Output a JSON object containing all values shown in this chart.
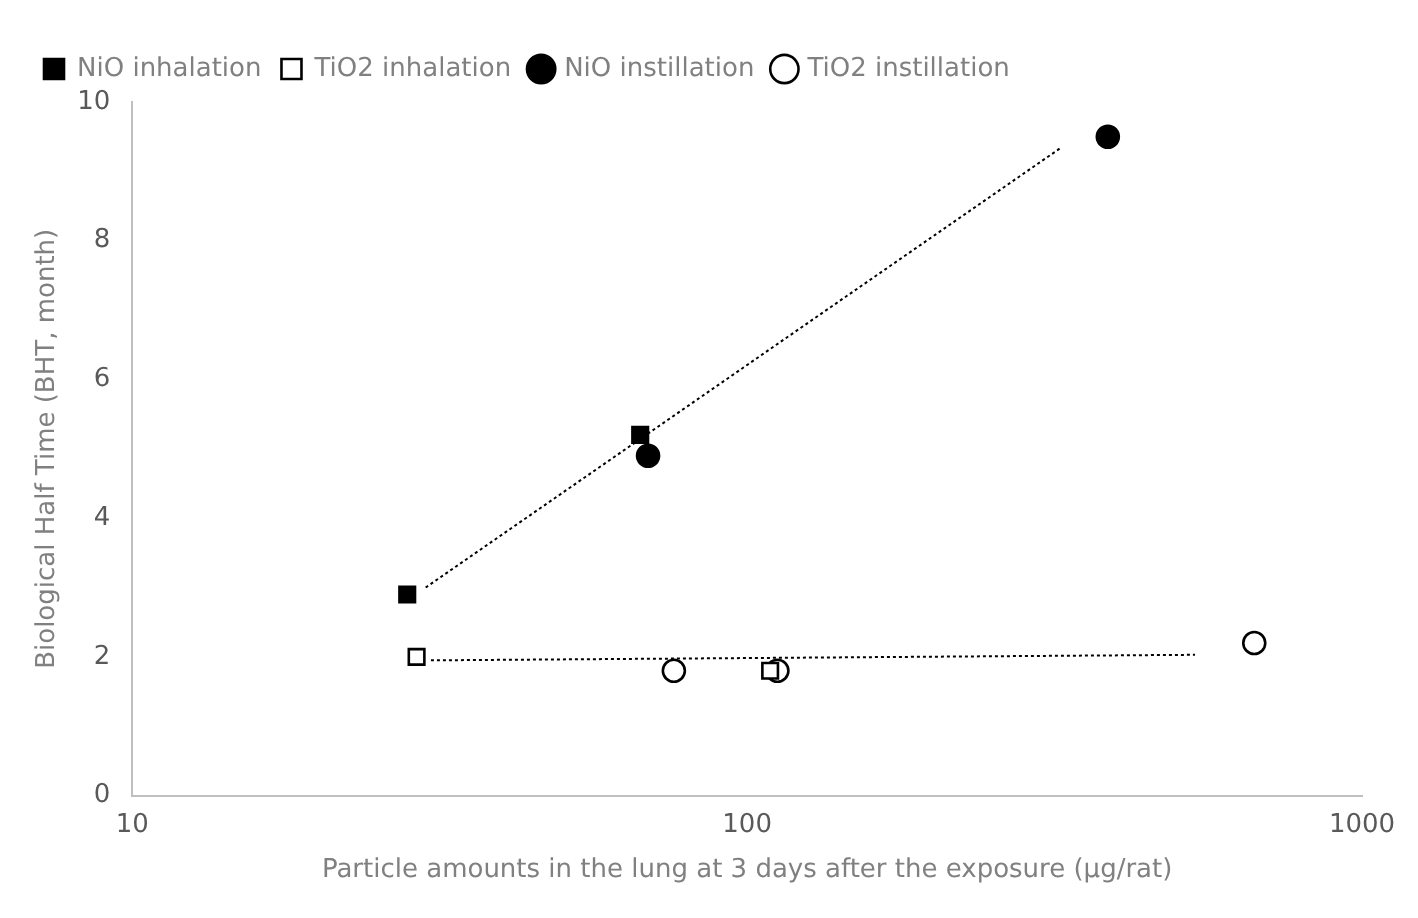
{
  "chart_data": {
    "type": "scatter",
    "xlabel": "Particle amounts in the lung at 3 days after the exposure (μg/rat)",
    "ylabel": "Biological Half Time (BHT, month)",
    "log": "x",
    "xlim": [
      10,
      1000
    ],
    "xticks": [
      10,
      100,
      1000
    ],
    "ylim": [
      0,
      10
    ],
    "yticks": [
      0,
      2,
      4,
      6,
      8,
      10
    ],
    "grid": false,
    "legend": "top left",
    "series": [
      {
        "name": "NiO inhalation",
        "color": "#000000",
        "marker": "square",
        "x": [
          28,
          67
        ],
        "values": [
          2.9,
          5.2
        ]
      },
      {
        "name": "TiO2 inhalation",
        "color": "#ffffff",
        "marker": "square",
        "x": [
          29,
          109
        ],
        "values": [
          2.0,
          1.8
        ]
      },
      {
        "name": "NiO instillation",
        "color": "#000000",
        "marker": "circle",
        "x": [
          69,
          386
        ],
        "values": [
          4.9,
          9.5
        ]
      },
      {
        "name": "TiO2 instillation",
        "color": "#ffffff",
        "marker": "circle",
        "x": [
          76,
          112,
          668
        ],
        "values": [
          1.8,
          1.8,
          2.2
        ]
      },
      {
        "type": "line",
        "color": "#000000",
        "marker": "none",
        "line_style": "dotted",
        "x": [
          30,
          325
        ],
        "values": [
          3.0,
          9.35
        ]
      },
      {
        "type": "line",
        "color": "#000000",
        "marker": "none",
        "line_style": "dotted",
        "x": [
          30.6,
          535
        ],
        "values": [
          1.95,
          2.03
        ]
      }
    ]
  }
}
